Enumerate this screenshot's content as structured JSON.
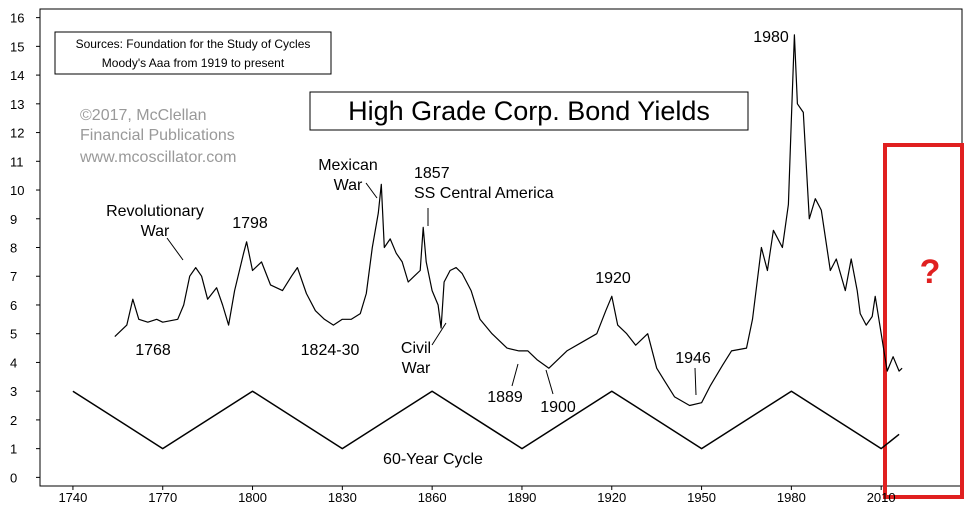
{
  "chart_data": {
    "type": "line",
    "title": "High Grade Corp. Bond Yields",
    "sources": [
      "Sources: Foundation for the Study of Cycles",
      "Moody's Aaa from 1919 to present"
    ],
    "credit": [
      "©2017, McClellan",
      "Financial Publications",
      "www.mcoscillator.com"
    ],
    "question_mark": "?",
    "annotations": [
      [
        "Revolutionary",
        "War"
      ],
      [
        "1798"
      ],
      [
        "1768"
      ],
      [
        "1824-30"
      ],
      [
        "Mexican",
        "War"
      ],
      [
        "1857",
        "SS Central America"
      ],
      [
        "Civil",
        "War"
      ],
      [
        "1889"
      ],
      [
        "1900"
      ],
      [
        "1920"
      ],
      [
        "1946"
      ],
      [
        "1980"
      ],
      [
        "60-Year Cycle"
      ]
    ],
    "series": [
      {
        "color": "#000000",
        "x": [
          1754,
          1758,
          1760,
          1762,
          1765,
          1768,
          1770,
          1775,
          1777,
          1779,
          1781,
          1783,
          1785,
          1788,
          1790,
          1792,
          1794,
          1797,
          1798,
          1800,
          1803,
          1806,
          1810,
          1813,
          1815,
          1818,
          1821,
          1824,
          1827,
          1830,
          1833,
          1836,
          1838,
          1840,
          1842,
          1843,
          1844,
          1846,
          1848,
          1850,
          1852,
          1854,
          1856,
          1857,
          1858,
          1860,
          1862,
          1863,
          1864,
          1866,
          1868,
          1870,
          1873,
          1876,
          1880,
          1885,
          1889,
          1892,
          1895,
          1899,
          1902,
          1905,
          1910,
          1915,
          1918,
          1920,
          1922,
          1925,
          1928,
          1932,
          1935,
          1938,
          1941,
          1946,
          1950,
          1953,
          1957,
          1960,
          1965,
          1967,
          1970,
          1972,
          1974,
          1977,
          1979,
          1980,
          1981,
          1982,
          1984,
          1986,
          1988,
          1990,
          1993,
          1995,
          1998,
          2000,
          2002,
          2003,
          2005,
          2007,
          2008,
          2010,
          2012,
          2014,
          2016,
          2017
        ],
        "values": [
          4.9,
          5.3,
          6.2,
          5.5,
          5.4,
          5.5,
          5.4,
          5.5,
          6.0,
          7.0,
          7.3,
          7.0,
          6.2,
          6.6,
          6.0,
          5.3,
          6.5,
          7.8,
          8.2,
          7.2,
          7.5,
          6.7,
          6.5,
          7.0,
          7.3,
          6.4,
          5.8,
          5.5,
          5.3,
          5.5,
          5.5,
          5.7,
          6.4,
          8.0,
          9.2,
          10.2,
          8.0,
          8.3,
          7.8,
          7.5,
          6.8,
          7.0,
          7.2,
          8.7,
          7.5,
          6.5,
          6.0,
          5.2,
          6.8,
          7.2,
          7.3,
          7.1,
          6.5,
          5.5,
          5.0,
          4.5,
          4.4,
          4.4,
          4.1,
          3.8,
          4.1,
          4.4,
          4.7,
          5.0,
          5.8,
          6.3,
          5.3,
          5.0,
          4.6,
          5.0,
          3.8,
          3.3,
          2.8,
          2.5,
          2.6,
          3.2,
          3.9,
          4.4,
          4.5,
          5.5,
          8.0,
          7.2,
          8.6,
          8.0,
          9.5,
          12.5,
          15.4,
          13.0,
          12.7,
          9.0,
          9.7,
          9.3,
          7.2,
          7.6,
          6.5,
          7.6,
          6.5,
          5.7,
          5.3,
          5.6,
          6.3,
          5.0,
          3.7,
          4.2,
          3.7,
          3.8
        ]
      },
      {
        "color": "#000000",
        "x": [
          1740,
          1770,
          1800,
          1830,
          1860,
          1890,
          1920,
          1950,
          1980,
          2010,
          2016
        ],
        "values": [
          3,
          1,
          3,
          1,
          3,
          1,
          3,
          1,
          3,
          1,
          1.5
        ]
      }
    ],
    "xlim": [
      1729,
      2037
    ],
    "ylim": [
      -0.3,
      16.3
    ],
    "xticks": [
      1740,
      1770,
      1800,
      1830,
      1860,
      1890,
      1920,
      1950,
      1980,
      2010
    ],
    "yticks": [
      0,
      1,
      2,
      3,
      4,
      5,
      6,
      7,
      8,
      9,
      10,
      11,
      12,
      13,
      14,
      15,
      16
    ],
    "highlight_color": "#e02020"
  }
}
